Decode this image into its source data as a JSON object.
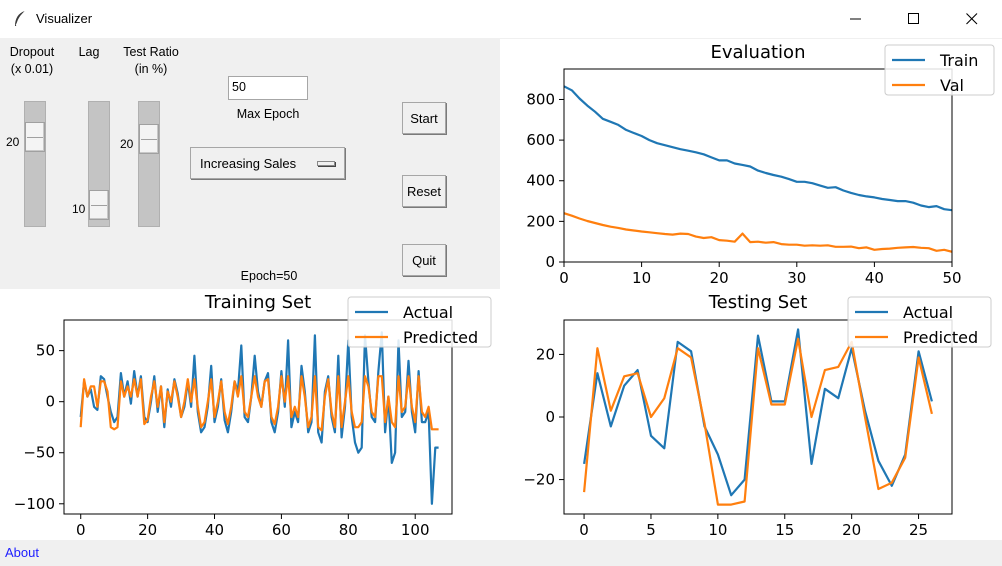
{
  "window": {
    "title": "Visualizer"
  },
  "controls": {
    "dropout": {
      "label_line1": "Dropout",
      "label_line2": "(x 0.01)",
      "value": "20",
      "min": 0,
      "max": 100,
      "level": 0.2
    },
    "lag": {
      "label": "Lag",
      "value": "10",
      "min": 1,
      "max": 10,
      "level": 1.0
    },
    "test_ratio": {
      "label_line1": "Test Ratio",
      "label_line2": "(in %)",
      "value": "20",
      "min": 10,
      "max": 90,
      "level": 0.125
    },
    "max_epoch": {
      "value": "50",
      "label": "Max Epoch"
    },
    "dataset": {
      "selected": "Increasing Sales"
    },
    "epoch_status": "Epoch=50",
    "start_label": "Start",
    "reset_label": "Reset",
    "quit_label": "Quit"
  },
  "status": {
    "about_label": "About"
  },
  "colors": {
    "series1": "#1f77b4",
    "series2": "#ff7f0e"
  },
  "chart_data": [
    {
      "id": "evaluation",
      "type": "line",
      "title": "Evaluation",
      "xlim": [
        0,
        50
      ],
      "ylim": [
        0,
        950
      ],
      "xticks": [
        0,
        10,
        20,
        30,
        40,
        50
      ],
      "yticks": [
        0,
        200,
        400,
        600,
        800
      ],
      "legend": "top-right",
      "series": [
        {
          "name": "Train",
          "x": [
            0,
            1,
            2,
            3,
            4,
            5,
            6,
            7,
            8,
            9,
            10,
            11,
            12,
            13,
            14,
            15,
            16,
            17,
            18,
            19,
            20,
            21,
            22,
            23,
            24,
            25,
            26,
            27,
            28,
            29,
            30,
            31,
            32,
            33,
            34,
            35,
            36,
            37,
            38,
            39,
            40,
            41,
            42,
            43,
            44,
            45,
            46,
            47,
            48,
            49,
            50
          ],
          "values": [
            865,
            845,
            805,
            770,
            740,
            705,
            690,
            675,
            650,
            635,
            620,
            600,
            585,
            575,
            565,
            555,
            548,
            540,
            530,
            515,
            500,
            500,
            485,
            478,
            470,
            450,
            438,
            428,
            420,
            408,
            395,
            395,
            388,
            376,
            365,
            368,
            352,
            340,
            330,
            323,
            318,
            310,
            305,
            300,
            300,
            292,
            278,
            270,
            275,
            260,
            255
          ]
        },
        {
          "name": "Val",
          "x": [
            0,
            1,
            2,
            3,
            4,
            5,
            6,
            7,
            8,
            9,
            10,
            11,
            12,
            13,
            14,
            15,
            16,
            17,
            18,
            19,
            20,
            21,
            22,
            23,
            24,
            25,
            26,
            27,
            28,
            29,
            30,
            31,
            32,
            33,
            34,
            35,
            36,
            37,
            38,
            39,
            40,
            41,
            42,
            43,
            44,
            45,
            46,
            47,
            48,
            49,
            50
          ],
          "values": [
            240,
            228,
            214,
            202,
            192,
            182,
            174,
            168,
            160,
            155,
            150,
            146,
            142,
            138,
            135,
            140,
            138,
            125,
            118,
            122,
            108,
            105,
            100,
            140,
            98,
            100,
            95,
            98,
            88,
            85,
            85,
            80,
            82,
            80,
            82,
            75,
            75,
            76,
            68,
            72,
            60,
            64,
            66,
            70,
            72,
            74,
            70,
            68,
            55,
            60,
            50
          ]
        }
      ]
    },
    {
      "id": "training-set",
      "type": "line",
      "title": "Training Set",
      "xlim": [
        -5,
        111
      ],
      "ylim": [
        -110,
        80
      ],
      "xticks": [
        0,
        20,
        40,
        60,
        80,
        100
      ],
      "yticks": [
        50,
        0,
        -50,
        -100
      ],
      "legend": "top-right",
      "series": [
        {
          "name": "Actual",
          "x": [
            0,
            1,
            2,
            3,
            4,
            5,
            6,
            7,
            8,
            9,
            10,
            11,
            12,
            13,
            14,
            15,
            16,
            17,
            18,
            19,
            20,
            21,
            22,
            23,
            24,
            25,
            26,
            27,
            28,
            29,
            30,
            31,
            32,
            33,
            34,
            35,
            36,
            37,
            38,
            39,
            40,
            41,
            42,
            43,
            44,
            45,
            46,
            47,
            48,
            49,
            50,
            51,
            52,
            53,
            54,
            55,
            56,
            57,
            58,
            59,
            60,
            61,
            62,
            63,
            64,
            65,
            66,
            67,
            68,
            69,
            70,
            71,
            72,
            73,
            74,
            75,
            76,
            77,
            78,
            79,
            80,
            81,
            82,
            83,
            84,
            85,
            86,
            87,
            88,
            89,
            90,
            91,
            92,
            93,
            94,
            95,
            96,
            97,
            98,
            99,
            100,
            101,
            102,
            103,
            104,
            105,
            106,
            107
          ],
          "values": [
            -15,
            20,
            5,
            12,
            -5,
            -8,
            25,
            22,
            5,
            -10,
            -20,
            -15,
            28,
            5,
            20,
            -2,
            30,
            5,
            25,
            -15,
            -20,
            0,
            25,
            -10,
            15,
            -25,
            12,
            -5,
            22,
            8,
            -15,
            -5,
            20,
            -5,
            45,
            -10,
            -30,
            -25,
            -5,
            35,
            -20,
            -5,
            22,
            -18,
            -30,
            -10,
            20,
            10,
            55,
            -15,
            -20,
            5,
            45,
            10,
            -5,
            20,
            28,
            -20,
            -30,
            -10,
            30,
            -5,
            60,
            -25,
            -10,
            -20,
            35,
            10,
            -30,
            -20,
            65,
            -30,
            -40,
            10,
            25,
            -15,
            -30,
            45,
            -35,
            -5,
            60,
            -15,
            -40,
            -50,
            -45,
            65,
            20,
            -15,
            -20,
            30,
            68,
            -30,
            5,
            -60,
            -50,
            60,
            -15,
            -10,
            40,
            -10,
            -30,
            30,
            -20,
            -20,
            -10,
            -100,
            -45,
            -45
          ]
        },
        {
          "name": "Predicted",
          "x": [
            0,
            1,
            2,
            3,
            4,
            5,
            6,
            7,
            8,
            9,
            10,
            11,
            12,
            13,
            14,
            15,
            16,
            17,
            18,
            19,
            20,
            21,
            22,
            23,
            24,
            25,
            26,
            27,
            28,
            29,
            30,
            31,
            32,
            33,
            34,
            35,
            36,
            37,
            38,
            39,
            40,
            41,
            42,
            43,
            44,
            45,
            46,
            47,
            48,
            49,
            50,
            51,
            52,
            53,
            54,
            55,
            56,
            57,
            58,
            59,
            60,
            61,
            62,
            63,
            64,
            65,
            66,
            67,
            68,
            69,
            70,
            71,
            72,
            73,
            74,
            75,
            76,
            77,
            78,
            79,
            80,
            81,
            82,
            83,
            84,
            85,
            86,
            87,
            88,
            89,
            90,
            91,
            92,
            93,
            94,
            95,
            96,
            97,
            98,
            99,
            100,
            101,
            102,
            103,
            104,
            105,
            106,
            107
          ],
          "values": [
            -25,
            22,
            5,
            15,
            15,
            -5,
            20,
            20,
            10,
            -25,
            -27,
            -25,
            20,
            5,
            15,
            5,
            22,
            5,
            22,
            -22,
            -18,
            5,
            20,
            -5,
            15,
            -20,
            10,
            0,
            20,
            5,
            -15,
            0,
            22,
            0,
            22,
            -5,
            -25,
            -20,
            0,
            22,
            -15,
            0,
            20,
            -10,
            -22,
            -5,
            20,
            5,
            25,
            -10,
            -15,
            5,
            25,
            5,
            -5,
            20,
            22,
            -15,
            -22,
            -5,
            25,
            0,
            25,
            -15,
            -5,
            -15,
            25,
            5,
            -25,
            -15,
            25,
            -25,
            -28,
            5,
            22,
            -10,
            -25,
            25,
            -25,
            0,
            25,
            -10,
            -25,
            -25,
            -20,
            25,
            15,
            -10,
            -15,
            25,
            25,
            -20,
            5,
            -20,
            -25,
            25,
            -10,
            -5,
            25,
            -5,
            -20,
            25,
            -10,
            -15,
            -5,
            -27,
            -27,
            -27
          ]
        }
      ]
    },
    {
      "id": "testing-set",
      "type": "line",
      "title": "Testing Set",
      "xlim": [
        -1.5,
        27.5
      ],
      "ylim": [
        -31,
        31
      ],
      "xticks": [
        0,
        5,
        10,
        15,
        20,
        25
      ],
      "yticks": [
        20,
        0,
        -20
      ],
      "legend": "top-right",
      "series": [
        {
          "name": "Actual",
          "x": [
            0,
            1,
            2,
            3,
            4,
            5,
            6,
            7,
            8,
            9,
            10,
            11,
            12,
            13,
            14,
            15,
            16,
            17,
            18,
            19,
            20,
            21,
            22,
            23,
            24,
            25,
            26
          ],
          "values": [
            -15,
            14,
            -3,
            10,
            15,
            -6,
            -10,
            24,
            21,
            -3,
            -12,
            -25,
            -20,
            26,
            5,
            5,
            28,
            -15,
            9,
            6,
            22,
            2,
            -14,
            -22,
            -12,
            21,
            5
          ]
        },
        {
          "name": "Predicted",
          "x": [
            0,
            1,
            2,
            3,
            4,
            5,
            6,
            7,
            8,
            9,
            10,
            11,
            12,
            13,
            14,
            15,
            16,
            17,
            18,
            19,
            20,
            21,
            22,
            23,
            24,
            25,
            26
          ],
          "values": [
            -24,
            22,
            2,
            13,
            14,
            0,
            6,
            22,
            19,
            -2,
            -28,
            -28,
            -27,
            22,
            4,
            4,
            25,
            0,
            15,
            16,
            24,
            0,
            -23,
            -21,
            -13,
            19,
            1
          ]
        }
      ]
    }
  ]
}
